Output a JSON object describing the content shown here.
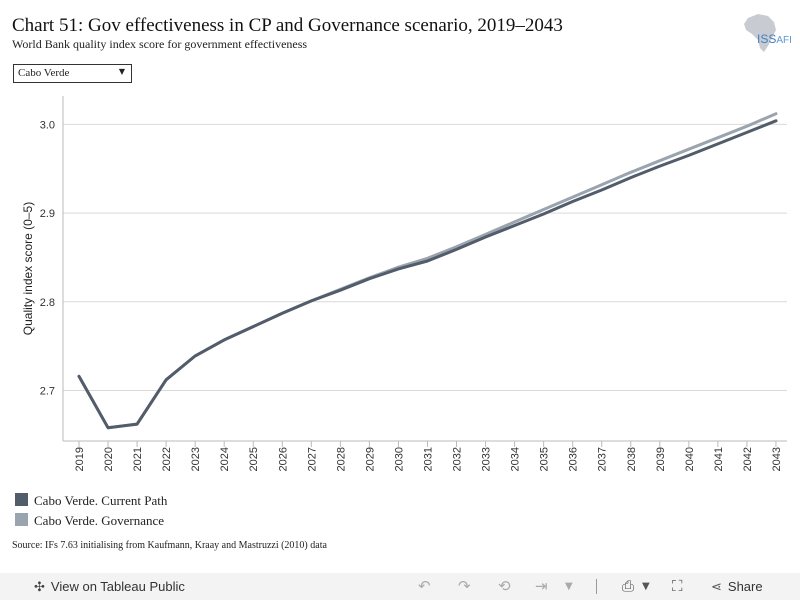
{
  "header": {
    "title": "Chart 51: Gov effectiveness in CP and Governance scenario, 2019–2043",
    "subtitle": "World Bank quality index score for government effectiveness",
    "logo_text": "ISS",
    "logo_suffix": "AFI"
  },
  "filter": {
    "selected": "Cabo Verde"
  },
  "chart_data": {
    "type": "line",
    "x": [
      2019,
      2020,
      2021,
      2022,
      2023,
      2024,
      2025,
      2026,
      2027,
      2028,
      2029,
      2030,
      2031,
      2032,
      2033,
      2034,
      2035,
      2036,
      2037,
      2038,
      2039,
      2040,
      2041,
      2042,
      2043
    ],
    "xlabels": [
      "2019",
      "2020",
      "2021",
      "2022",
      "2023",
      "2024",
      "2025",
      "2026",
      "2027",
      "2028",
      "2029",
      "2030",
      "2031",
      "2032",
      "2033",
      "2034",
      "2035",
      "2036",
      "2037",
      "2038",
      "2039",
      "2040",
      "2041",
      "2042",
      "2043"
    ],
    "ylabel": "Quality index score (0–5)",
    "ylim": [
      2.643,
      3.032
    ],
    "yticks": [
      2.7,
      2.8,
      2.9,
      3.0
    ],
    "yticklabels": [
      "2.7",
      "2.8",
      "2.9",
      "3.0"
    ],
    "grid": true,
    "series": [
      {
        "name": "Cabo Verde. Current Path",
        "color": "#525c6a",
        "values": [
          2.716,
          2.658,
          2.662,
          2.712,
          2.739,
          2.757,
          2.772,
          2.787,
          2.801,
          2.813,
          2.826,
          2.837,
          2.846,
          2.859,
          2.873,
          2.886,
          2.899,
          2.913,
          2.926,
          2.94,
          2.953,
          2.965,
          2.978,
          2.991,
          3.004
        ]
      },
      {
        "name": "Cabo Verde. Governance",
        "color": "#9aa4ae",
        "values": [
          2.716,
          2.658,
          2.662,
          2.712,
          2.739,
          2.757,
          2.772,
          2.787,
          2.801,
          2.814,
          2.827,
          2.839,
          2.849,
          2.862,
          2.876,
          2.89,
          2.904,
          2.918,
          2.932,
          2.946,
          2.959,
          2.972,
          2.985,
          2.998,
          3.012
        ]
      }
    ]
  },
  "legend": [
    {
      "label": "Cabo Verde. Current Path",
      "color": "#525c6a"
    },
    {
      "label": "Cabo Verde. Governance",
      "color": "#9aa4ae"
    }
  ],
  "source": "Source: IFs 7.63 initialising from Kaufmann, Kraay and Mastruzzi (2010) data",
  "footer": {
    "view_label": "View on Tableau Public",
    "share_label": "Share",
    "icons": [
      "tableau-icon",
      "undo-icon",
      "redo-icon",
      "revert-icon",
      "refresh-icon",
      "download-icon",
      "fullscreen-icon",
      "share-icon"
    ]
  }
}
